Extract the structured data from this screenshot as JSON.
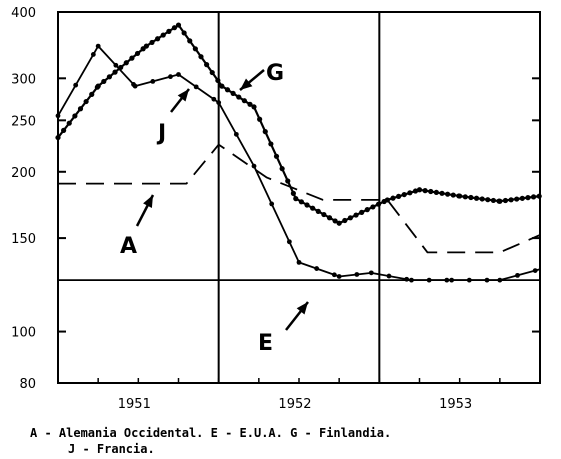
{
  "chart_data": {
    "type": "line",
    "y_scale": "log",
    "ylim": [
      80,
      400
    ],
    "y_ticks": [
      80,
      100,
      150,
      200,
      250,
      300,
      400
    ],
    "x_range": [
      1950.9,
      1953.9
    ],
    "x_ticks": [
      {
        "label": "1951",
        "x": 1951.375
      },
      {
        "label": "1952",
        "x": 1952.375
      },
      {
        "label": "1953",
        "x": 1953.375
      }
    ],
    "year_dividers": [
      1951.9,
      1952.9
    ],
    "series": [
      {
        "name": "Alemania Occidental",
        "letter": "A",
        "style": "dashed",
        "points": [
          [
            1950.9,
            190
          ],
          [
            1951.7,
            190
          ],
          [
            1951.9,
            225
          ],
          [
            1952.2,
            195
          ],
          [
            1952.55,
            177
          ],
          [
            1952.95,
            177
          ],
          [
            1953.2,
            141
          ],
          [
            1953.65,
            141
          ],
          [
            1953.9,
            152
          ]
        ]
      },
      {
        "name": "E.U.A.",
        "letter": "E",
        "style": "solid",
        "points": [
          [
            1950.9,
            125
          ],
          [
            1953.9,
            125
          ]
        ]
      },
      {
        "name": "Finlandia",
        "letter": "G",
        "style": "dotted",
        "points": [
          [
            1950.9,
            232
          ],
          [
            1951.15,
            290
          ],
          [
            1951.45,
            345
          ],
          [
            1951.65,
            378
          ],
          [
            1951.92,
            290
          ],
          [
            1952.12,
            265
          ],
          [
            1952.38,
            178
          ],
          [
            1952.65,
            160
          ],
          [
            1952.95,
            177
          ],
          [
            1953.15,
            185
          ],
          [
            1953.4,
            180
          ],
          [
            1953.65,
            176
          ],
          [
            1953.9,
            180
          ]
        ]
      },
      {
        "name": "Francia",
        "letter": "J",
        "style": "solid",
        "points": [
          [
            1950.9,
            255
          ],
          [
            1951.15,
            345
          ],
          [
            1951.38,
            290
          ],
          [
            1951.65,
            305
          ],
          [
            1951.9,
            270
          ],
          [
            1952.12,
            205
          ],
          [
            1952.4,
            135
          ],
          [
            1952.65,
            127
          ],
          [
            1952.85,
            129
          ],
          [
            1953.1,
            125
          ],
          [
            1953.35,
            125
          ],
          [
            1953.65,
            125
          ],
          [
            1953.9,
            131
          ]
        ]
      }
    ]
  },
  "legend": {
    "line1": "A - Alemania Occidental.     E - E.U.A.      G - Finlandia.",
    "line2": "J - Francia."
  }
}
